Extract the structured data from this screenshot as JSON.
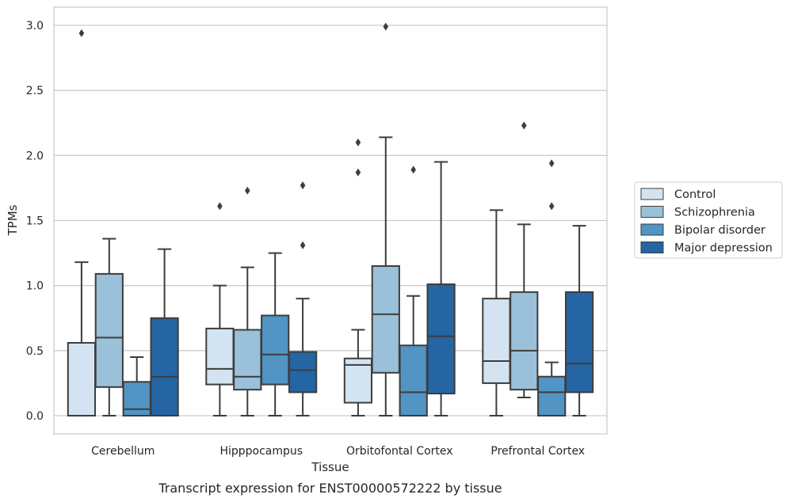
{
  "chart_data": {
    "type": "box",
    "xlabel": "Tissue",
    "ylabel": "TPMs",
    "caption": "Transcript expression for ENST00000572222 by tissue",
    "ylim": [
      -0.14,
      3.14
    ],
    "yticks": [
      "0.0",
      "0.5",
      "1.0",
      "1.5",
      "2.0",
      "2.5",
      "3.0"
    ],
    "ytick_values": [
      0,
      0.5,
      1.0,
      1.5,
      2.0,
      2.5,
      3.0
    ],
    "grid": "horizontal",
    "legend_position": "right",
    "categories": [
      "Cerebellum",
      "Hipppocampus",
      "Orbitofontal Cortex",
      "Prefrontal Cortex"
    ],
    "series": [
      {
        "name": "Control",
        "color": "#d3e3f2",
        "boxes": [
          {
            "whislo": 0,
            "q1": 0,
            "med": 0,
            "q3": 0.56,
            "whishi": 1.18,
            "fliers": [
              2.94
            ]
          },
          {
            "whislo": 0,
            "q1": 0.24,
            "med": 0.36,
            "q3": 0.67,
            "whishi": 1.0,
            "fliers": [
              1.61
            ]
          },
          {
            "whislo": 0,
            "q1": 0.1,
            "med": 0.39,
            "q3": 0.44,
            "whishi": 0.66,
            "fliers": [
              1.87,
              2.1
            ]
          },
          {
            "whislo": 0,
            "q1": 0.25,
            "med": 0.42,
            "q3": 0.9,
            "whishi": 1.58,
            "fliers": []
          }
        ]
      },
      {
        "name": "Schizophrenia",
        "color": "#9ac0da",
        "boxes": [
          {
            "whislo": 0,
            "q1": 0.22,
            "med": 0.6,
            "q3": 1.09,
            "whishi": 1.36,
            "fliers": []
          },
          {
            "whislo": 0,
            "q1": 0.2,
            "med": 0.3,
            "q3": 0.66,
            "whishi": 1.14,
            "fliers": [
              1.73
            ]
          },
          {
            "whislo": 0,
            "q1": 0.33,
            "med": 0.78,
            "q3": 1.15,
            "whishi": 2.14,
            "fliers": [
              2.99
            ]
          },
          {
            "whislo": 0.14,
            "q1": 0.2,
            "med": 0.5,
            "q3": 0.95,
            "whishi": 1.47,
            "fliers": [
              2.23
            ]
          }
        ]
      },
      {
        "name": "Bipolar disorder",
        "color": "#5294c3",
        "boxes": [
          {
            "whislo": 0,
            "q1": 0,
            "med": 0.05,
            "q3": 0.26,
            "whishi": 0.45,
            "fliers": []
          },
          {
            "whislo": 0,
            "q1": 0.24,
            "med": 0.47,
            "q3": 0.77,
            "whishi": 1.25,
            "fliers": []
          },
          {
            "whislo": 0,
            "q1": 0,
            "med": 0.18,
            "q3": 0.54,
            "whishi": 0.92,
            "fliers": [
              1.89
            ]
          },
          {
            "whislo": 0,
            "q1": 0,
            "med": 0.18,
            "q3": 0.3,
            "whishi": 0.41,
            "fliers": [
              1.61,
              1.94
            ]
          }
        ]
      },
      {
        "name": "Major depression",
        "color": "#2565a3",
        "boxes": [
          {
            "whislo": 0,
            "q1": 0,
            "med": 0.3,
            "q3": 0.75,
            "whishi": 1.28,
            "fliers": []
          },
          {
            "whislo": 0,
            "q1": 0.18,
            "med": 0.35,
            "q3": 0.49,
            "whishi": 0.9,
            "fliers": [
              1.31,
              1.77
            ]
          },
          {
            "whislo": 0,
            "q1": 0.17,
            "med": 0.61,
            "q3": 1.01,
            "whishi": 1.95,
            "fliers": []
          },
          {
            "whislo": 0,
            "q1": 0.18,
            "med": 0.4,
            "q3": 0.95,
            "whishi": 1.46,
            "fliers": []
          }
        ]
      }
    ]
  }
}
